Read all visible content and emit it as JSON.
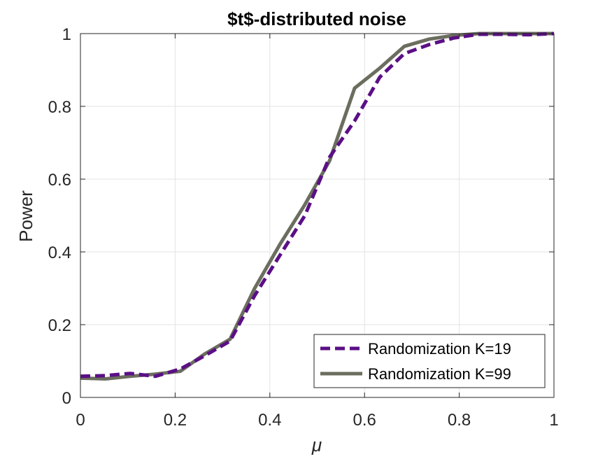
{
  "chart_data": {
    "type": "line",
    "title": "$t$-distributed noise",
    "xlabel": "μ",
    "ylabel": "Power",
    "xlim": [
      0,
      1
    ],
    "ylim": [
      0,
      1
    ],
    "xticks": [
      0,
      0.2,
      0.4,
      0.6,
      0.8,
      1
    ],
    "yticks": [
      0,
      0.2,
      0.4,
      0.6,
      0.8,
      1
    ],
    "xtick_labels": [
      "0",
      "0.2",
      "0.4",
      "0.6",
      "0.8",
      "1"
    ],
    "ytick_labels": [
      "0",
      "0.2",
      "0.4",
      "0.6",
      "0.8",
      "1"
    ],
    "grid": true,
    "legend_position": "bottom-right",
    "x": [
      0,
      0.053,
      0.105,
      0.158,
      0.211,
      0.263,
      0.316,
      0.368,
      0.421,
      0.474,
      0.526,
      0.579,
      0.632,
      0.684,
      0.737,
      0.789,
      0.842,
      0.895,
      0.947,
      1.0
    ],
    "series": [
      {
        "name": "Randomization K=19",
        "color": "#5b0f86",
        "style": "dashed",
        "values": [
          0.058,
          0.06,
          0.066,
          0.058,
          0.078,
          0.115,
          0.155,
          0.28,
          0.39,
          0.5,
          0.66,
          0.76,
          0.88,
          0.945,
          0.97,
          0.988,
          0.998,
          0.998,
          0.997,
          1.0
        ]
      },
      {
        "name": "Randomization K=99",
        "color": "#6b6e5e",
        "style": "solid",
        "values": [
          0.053,
          0.051,
          0.058,
          0.064,
          0.072,
          0.12,
          0.16,
          0.3,
          0.42,
          0.53,
          0.65,
          0.85,
          0.905,
          0.965,
          0.985,
          0.995,
          1.0,
          1.0,
          1.0,
          1.0
        ]
      }
    ]
  }
}
